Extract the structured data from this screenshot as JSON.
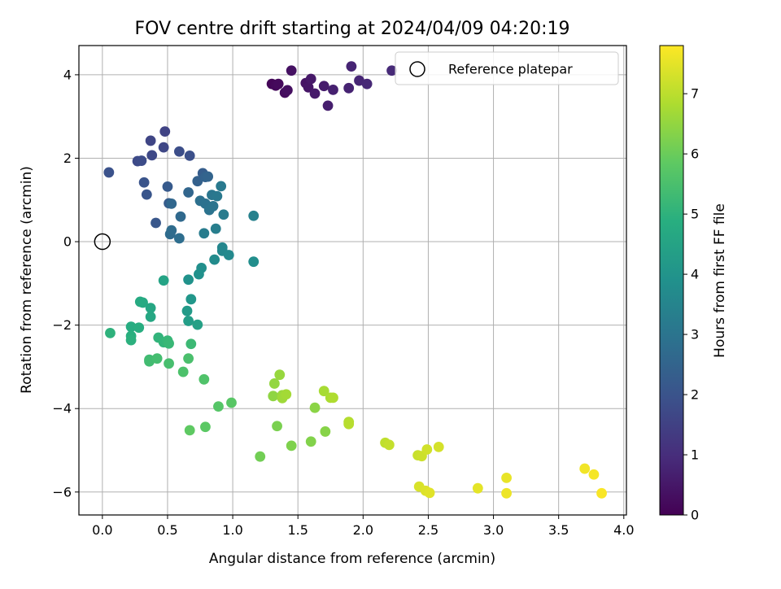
{
  "chart_data": {
    "type": "scatter",
    "title": "FOV centre drift starting at 2024/04/09 04:20:19",
    "xlabel": "Angular distance from reference (arcmin)",
    "ylabel": "Rotation from reference (arcmin)",
    "xlim": [
      -0.18,
      4.02
    ],
    "ylim": [
      -6.55,
      4.7
    ],
    "xticks": [
      0.0,
      0.5,
      1.0,
      1.5,
      2.0,
      2.5,
      3.0,
      3.5,
      4.0
    ],
    "xtick_labels": [
      "0.0",
      "0.5",
      "1.0",
      "1.5",
      "2.0",
      "2.5",
      "3.0",
      "3.5",
      "4.0"
    ],
    "yticks": [
      -6,
      -4,
      -2,
      0,
      2,
      4
    ],
    "ytick_labels": [
      "−6",
      "−4",
      "−2",
      "0",
      "2",
      "4"
    ],
    "grid": true,
    "legend": {
      "placement": "top-right",
      "entries": [
        "Reference platepar"
      ]
    },
    "colorbar": {
      "label": "Hours from first FF file",
      "range": [
        0,
        7.8
      ],
      "ticks": [
        0,
        1,
        2,
        3,
        4,
        5,
        6,
        7
      ],
      "tick_labels": [
        "0",
        "1",
        "2",
        "3",
        "4",
        "5",
        "6",
        "7"
      ],
      "colormap": "viridis"
    },
    "reference_point": {
      "x": 0.0,
      "y": 0.0
    },
    "points": [
      {
        "x": 1.3,
        "y": 3.78,
        "h": 0.1
      },
      {
        "x": 1.33,
        "y": 3.74,
        "h": 0.15
      },
      {
        "x": 1.35,
        "y": 3.78,
        "h": 0.2
      },
      {
        "x": 1.4,
        "y": 3.57,
        "h": 0.25
      },
      {
        "x": 1.42,
        "y": 3.63,
        "h": 0.3
      },
      {
        "x": 1.45,
        "y": 4.1,
        "h": 0.35
      },
      {
        "x": 1.56,
        "y": 3.8,
        "h": 0.4
      },
      {
        "x": 1.58,
        "y": 3.7,
        "h": 0.45
      },
      {
        "x": 1.6,
        "y": 3.9,
        "h": 0.5
      },
      {
        "x": 1.63,
        "y": 3.55,
        "h": 0.55
      },
      {
        "x": 1.7,
        "y": 3.73,
        "h": 0.6
      },
      {
        "x": 1.73,
        "y": 3.26,
        "h": 0.65
      },
      {
        "x": 1.77,
        "y": 3.64,
        "h": 0.7
      },
      {
        "x": 1.89,
        "y": 3.68,
        "h": 0.75
      },
      {
        "x": 1.91,
        "y": 4.2,
        "h": 0.78
      },
      {
        "x": 1.97,
        "y": 3.86,
        "h": 0.82
      },
      {
        "x": 2.03,
        "y": 3.78,
        "h": 0.86
      },
      {
        "x": 2.22,
        "y": 4.1,
        "h": 0.9
      },
      {
        "x": 0.48,
        "y": 2.64,
        "h": 1.55
      },
      {
        "x": 0.37,
        "y": 2.42,
        "h": 1.6
      },
      {
        "x": 0.47,
        "y": 2.26,
        "h": 1.65
      },
      {
        "x": 0.38,
        "y": 2.07,
        "h": 1.7
      },
      {
        "x": 0.27,
        "y": 1.93,
        "h": 1.75
      },
      {
        "x": 0.3,
        "y": 1.94,
        "h": 1.8
      },
      {
        "x": 0.59,
        "y": 2.16,
        "h": 1.85
      },
      {
        "x": 0.67,
        "y": 2.06,
        "h": 1.9
      },
      {
        "x": 0.05,
        "y": 1.66,
        "h": 1.95
      },
      {
        "x": 0.32,
        "y": 1.42,
        "h": 2.0
      },
      {
        "x": 0.34,
        "y": 1.13,
        "h": 2.05
      },
      {
        "x": 0.41,
        "y": 0.45,
        "h": 2.1
      },
      {
        "x": 0.5,
        "y": 1.32,
        "h": 2.2
      },
      {
        "x": 0.51,
        "y": 0.92,
        "h": 2.25
      },
      {
        "x": 0.77,
        "y": 1.64,
        "h": 2.3
      },
      {
        "x": 0.73,
        "y": 1.45,
        "h": 2.4
      },
      {
        "x": 0.79,
        "y": 1.55,
        "h": 2.45
      },
      {
        "x": 0.81,
        "y": 1.56,
        "h": 2.5
      },
      {
        "x": 0.66,
        "y": 1.18,
        "h": 2.55
      },
      {
        "x": 0.53,
        "y": 0.91,
        "h": 2.6
      },
      {
        "x": 0.6,
        "y": 0.6,
        "h": 2.65
      },
      {
        "x": 0.52,
        "y": 0.18,
        "h": 2.7
      },
      {
        "x": 0.53,
        "y": 0.27,
        "h": 2.75
      },
      {
        "x": 0.59,
        "y": 0.08,
        "h": 2.8
      },
      {
        "x": 0.75,
        "y": 0.98,
        "h": 2.85
      },
      {
        "x": 0.79,
        "y": 0.91,
        "h": 2.9
      },
      {
        "x": 0.82,
        "y": 0.76,
        "h": 2.95
      },
      {
        "x": 0.85,
        "y": 0.85,
        "h": 3.0
      },
      {
        "x": 0.84,
        "y": 1.12,
        "h": 3.05
      },
      {
        "x": 0.88,
        "y": 1.09,
        "h": 3.1
      },
      {
        "x": 0.91,
        "y": 1.33,
        "h": 3.15
      },
      {
        "x": 0.93,
        "y": 0.65,
        "h": 3.2
      },
      {
        "x": 0.78,
        "y": 0.2,
        "h": 3.25
      },
      {
        "x": 0.87,
        "y": 0.31,
        "h": 3.3
      },
      {
        "x": 1.16,
        "y": 0.62,
        "h": 3.4
      },
      {
        "x": 0.92,
        "y": -0.14,
        "h": 3.55
      },
      {
        "x": 0.92,
        "y": -0.22,
        "h": 3.6
      },
      {
        "x": 0.97,
        "y": -0.32,
        "h": 3.65
      },
      {
        "x": 0.86,
        "y": -0.43,
        "h": 3.7
      },
      {
        "x": 1.16,
        "y": -0.48,
        "h": 3.8
      },
      {
        "x": 0.76,
        "y": -0.63,
        "h": 3.85
      },
      {
        "x": 0.74,
        "y": -0.78,
        "h": 3.9
      },
      {
        "x": 0.66,
        "y": -0.91,
        "h": 3.95
      },
      {
        "x": 0.68,
        "y": -1.38,
        "h": 4.1
      },
      {
        "x": 0.65,
        "y": -1.66,
        "h": 4.2
      },
      {
        "x": 0.66,
        "y": -1.9,
        "h": 4.3
      },
      {
        "x": 0.73,
        "y": -1.99,
        "h": 4.4
      },
      {
        "x": 0.47,
        "y": -0.93,
        "h": 4.5
      },
      {
        "x": 0.37,
        "y": -1.59,
        "h": 4.6
      },
      {
        "x": 0.37,
        "y": -1.8,
        "h": 4.65
      },
      {
        "x": 0.31,
        "y": -1.46,
        "h": 4.7
      },
      {
        "x": 0.29,
        "y": -1.44,
        "h": 4.75
      },
      {
        "x": 0.22,
        "y": -2.04,
        "h": 4.8
      },
      {
        "x": 0.28,
        "y": -2.06,
        "h": 4.85
      },
      {
        "x": 0.22,
        "y": -2.26,
        "h": 4.9
      },
      {
        "x": 0.22,
        "y": -2.36,
        "h": 4.95
      },
      {
        "x": 0.06,
        "y": -2.19,
        "h": 5.0
      },
      {
        "x": 0.43,
        "y": -2.3,
        "h": 5.05
      },
      {
        "x": 0.47,
        "y": -2.41,
        "h": 5.1
      },
      {
        "x": 0.5,
        "y": -2.37,
        "h": 5.15
      },
      {
        "x": 0.51,
        "y": -2.44,
        "h": 5.2
      },
      {
        "x": 0.68,
        "y": -2.45,
        "h": 5.25
      },
      {
        "x": 0.36,
        "y": -2.83,
        "h": 5.3
      },
      {
        "x": 0.36,
        "y": -2.87,
        "h": 5.35
      },
      {
        "x": 0.42,
        "y": -2.8,
        "h": 5.4
      },
      {
        "x": 0.51,
        "y": -2.92,
        "h": 5.45
      },
      {
        "x": 0.66,
        "y": -2.8,
        "h": 5.5
      },
      {
        "x": 0.62,
        "y": -3.12,
        "h": 5.55
      },
      {
        "x": 0.78,
        "y": -3.3,
        "h": 5.6
      },
      {
        "x": 0.89,
        "y": -3.95,
        "h": 5.7
      },
      {
        "x": 0.99,
        "y": -3.86,
        "h": 5.75
      },
      {
        "x": 0.79,
        "y": -4.44,
        "h": 5.8
      },
      {
        "x": 0.67,
        "y": -4.52,
        "h": 5.85
      },
      {
        "x": 1.21,
        "y": -5.15,
        "h": 6.1
      },
      {
        "x": 1.34,
        "y": -4.42,
        "h": 6.2
      },
      {
        "x": 1.45,
        "y": -4.89,
        "h": 6.25
      },
      {
        "x": 1.6,
        "y": -4.79,
        "h": 6.3
      },
      {
        "x": 1.71,
        "y": -4.55,
        "h": 6.35
      },
      {
        "x": 1.63,
        "y": -3.98,
        "h": 6.4
      },
      {
        "x": 1.31,
        "y": -3.7,
        "h": 6.45
      },
      {
        "x": 1.32,
        "y": -3.4,
        "h": 6.5
      },
      {
        "x": 1.36,
        "y": -3.19,
        "h": 6.55
      },
      {
        "x": 1.38,
        "y": -3.68,
        "h": 6.6
      },
      {
        "x": 1.38,
        "y": -3.75,
        "h": 6.65
      },
      {
        "x": 1.41,
        "y": -3.66,
        "h": 6.7
      },
      {
        "x": 1.7,
        "y": -3.58,
        "h": 6.75
      },
      {
        "x": 1.75,
        "y": -3.74,
        "h": 6.8
      },
      {
        "x": 1.77,
        "y": -3.74,
        "h": 6.85
      },
      {
        "x": 1.89,
        "y": -4.32,
        "h": 6.9
      },
      {
        "x": 1.89,
        "y": -4.37,
        "h": 6.95
      },
      {
        "x": 2.17,
        "y": -4.82,
        "h": 7.05
      },
      {
        "x": 2.2,
        "y": -4.87,
        "h": 7.1
      },
      {
        "x": 2.42,
        "y": -5.12,
        "h": 7.15
      },
      {
        "x": 2.45,
        "y": -5.14,
        "h": 7.2
      },
      {
        "x": 2.49,
        "y": -4.98,
        "h": 7.25
      },
      {
        "x": 2.58,
        "y": -4.92,
        "h": 7.3
      },
      {
        "x": 2.43,
        "y": -5.87,
        "h": 7.35
      },
      {
        "x": 2.48,
        "y": -5.97,
        "h": 7.4
      },
      {
        "x": 2.51,
        "y": -6.02,
        "h": 7.45
      },
      {
        "x": 2.88,
        "y": -5.91,
        "h": 7.5
      },
      {
        "x": 3.1,
        "y": -5.66,
        "h": 7.55
      },
      {
        "x": 3.1,
        "y": -6.03,
        "h": 7.6
      },
      {
        "x": 3.7,
        "y": -5.44,
        "h": 7.65
      },
      {
        "x": 3.77,
        "y": -5.58,
        "h": 7.7
      },
      {
        "x": 3.83,
        "y": -6.03,
        "h": 7.75
      }
    ]
  }
}
